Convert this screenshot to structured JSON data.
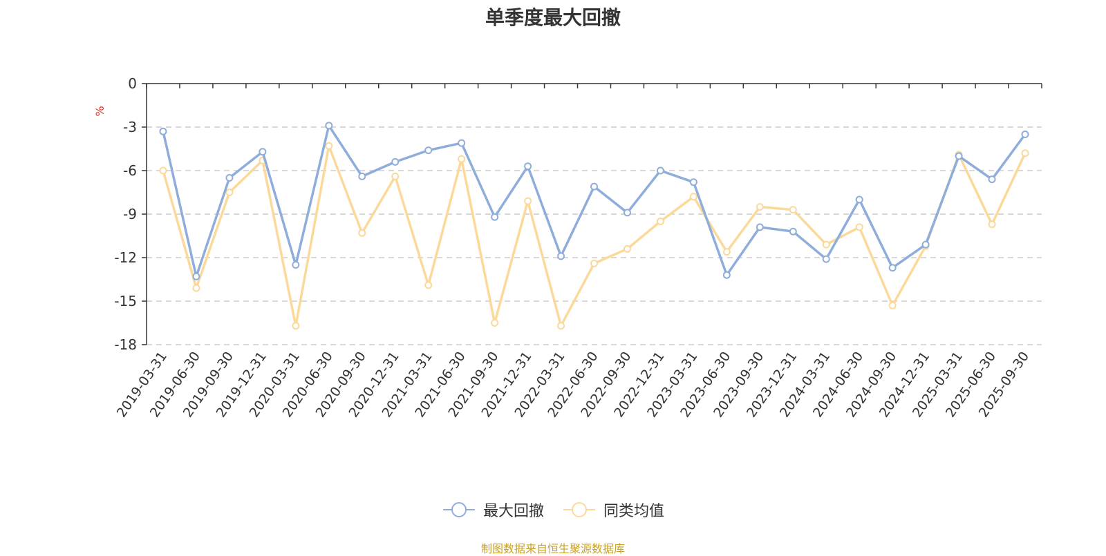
{
  "chart_data": {
    "type": "line",
    "title": "单季度最大回撤",
    "ylabel": "%",
    "ylim": [
      -18,
      0
    ],
    "yticks": [
      0,
      -3,
      -6,
      -9,
      -12,
      -15,
      -18
    ],
    "grid": true,
    "legend_position": "bottom",
    "categories": [
      "2019-03-31",
      "2019-06-30",
      "2019-09-30",
      "2019-12-31",
      "2020-03-31",
      "2020-06-30",
      "2020-09-30",
      "2020-12-31",
      "2021-03-31",
      "2021-06-30",
      "2021-09-30",
      "2021-12-31",
      "2022-03-31",
      "2022-06-30",
      "2022-09-30",
      "2022-12-31",
      "2023-03-31",
      "2023-06-30",
      "2023-09-30",
      "2023-12-31",
      "2024-03-31",
      "2024-06-30",
      "2024-09-30",
      "2024-12-31",
      "2025-03-31",
      "2025-06-30",
      "2025-09-30"
    ],
    "series": [
      {
        "name": "最大回撤",
        "color": "#8fadda",
        "values": [
          -3.3,
          -13.3,
          -6.5,
          -4.7,
          -12.5,
          -2.9,
          -6.4,
          -5.4,
          -4.6,
          -4.1,
          -9.2,
          -5.7,
          -11.9,
          -7.1,
          -8.9,
          -6.0,
          -6.8,
          -13.2,
          -9.9,
          -10.2,
          -12.1,
          -8.0,
          -12.7,
          -11.1,
          -5.0,
          -6.6,
          -3.5
        ]
      },
      {
        "name": "同类均值",
        "color": "#fbd99a",
        "values": [
          -6.0,
          -14.1,
          -7.5,
          -5.3,
          -16.7,
          -4.3,
          -10.3,
          -6.4,
          -13.9,
          -5.2,
          -16.5,
          -8.1,
          -16.7,
          -12.4,
          -11.4,
          -9.5,
          -7.8,
          -11.6,
          -8.5,
          -8.7,
          -11.1,
          -9.9,
          -15.3,
          -11.2,
          -4.9,
          -9.7,
          -4.8
        ]
      }
    ]
  },
  "source_note": "制图数据来自恒生聚源数据库",
  "colors": {
    "axis": "#333333",
    "grid": "#cccccc",
    "ylabel": "#e8281e",
    "source": "#c9a227"
  }
}
